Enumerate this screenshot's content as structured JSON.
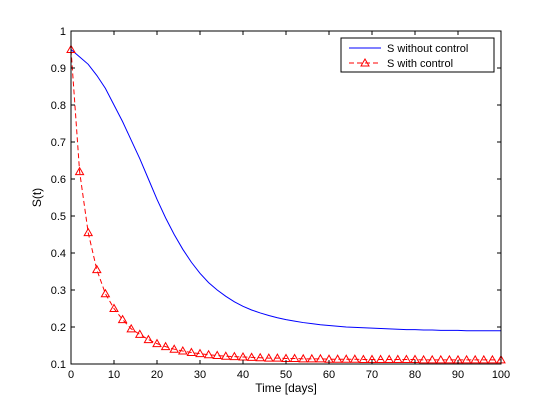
{
  "chart_data": {
    "type": "line",
    "title": "",
    "xlabel": "Time [days]",
    "ylabel": "S(t)",
    "xlim": [
      0,
      100
    ],
    "ylim": [
      0.1,
      1
    ],
    "xticks": [
      0,
      10,
      20,
      30,
      40,
      50,
      60,
      70,
      80,
      90,
      100
    ],
    "yticks": [
      0.1,
      0.2,
      0.3,
      0.4,
      0.5,
      0.6,
      0.7,
      0.8,
      0.9,
      1
    ],
    "grid": false,
    "legend": "top-right",
    "series": [
      {
        "name": "S without control",
        "color": "#0000ff",
        "style": "solid",
        "marker": "none",
        "x": [
          0,
          2,
          4,
          6,
          8,
          10,
          12,
          14,
          16,
          18,
          20,
          22,
          24,
          26,
          28,
          30,
          32,
          34,
          36,
          38,
          40,
          42,
          44,
          46,
          48,
          50,
          52,
          54,
          56,
          58,
          60,
          62,
          64,
          66,
          68,
          70,
          72,
          74,
          76,
          78,
          80,
          82,
          84,
          86,
          88,
          90,
          92,
          94,
          96,
          98,
          100
        ],
        "y": [
          0.95,
          0.93,
          0.91,
          0.88,
          0.845,
          0.8,
          0.755,
          0.705,
          0.655,
          0.6,
          0.545,
          0.495,
          0.45,
          0.41,
          0.375,
          0.345,
          0.32,
          0.3,
          0.283,
          0.268,
          0.256,
          0.246,
          0.238,
          0.231,
          0.225,
          0.22,
          0.216,
          0.212,
          0.209,
          0.206,
          0.204,
          0.202,
          0.2,
          0.199,
          0.198,
          0.197,
          0.196,
          0.195,
          0.194,
          0.193,
          0.193,
          0.192,
          0.192,
          0.191,
          0.191,
          0.191,
          0.19,
          0.19,
          0.19,
          0.19,
          0.19
        ]
      },
      {
        "name": "S with control",
        "color": "#ff0000",
        "style": "dashed",
        "marker": "triangle",
        "x": [
          0,
          2,
          4,
          6,
          8,
          10,
          12,
          14,
          16,
          18,
          20,
          22,
          24,
          26,
          28,
          30,
          32,
          34,
          36,
          38,
          40,
          42,
          44,
          46,
          48,
          50,
          52,
          54,
          56,
          58,
          60,
          62,
          64,
          66,
          68,
          70,
          72,
          74,
          76,
          78,
          80,
          82,
          84,
          86,
          88,
          90,
          92,
          94,
          96,
          98,
          100
        ],
        "y": [
          0.95,
          0.62,
          0.455,
          0.355,
          0.29,
          0.25,
          0.22,
          0.195,
          0.18,
          0.166,
          0.155,
          0.147,
          0.14,
          0.135,
          0.131,
          0.128,
          0.125,
          0.123,
          0.121,
          0.12,
          0.119,
          0.118,
          0.117,
          0.116,
          0.116,
          0.115,
          0.115,
          0.114,
          0.114,
          0.114,
          0.113,
          0.113,
          0.113,
          0.113,
          0.112,
          0.112,
          0.112,
          0.112,
          0.112,
          0.112,
          0.112,
          0.111,
          0.111,
          0.111,
          0.111,
          0.111,
          0.111,
          0.111,
          0.111,
          0.111,
          0.111
        ]
      }
    ]
  }
}
